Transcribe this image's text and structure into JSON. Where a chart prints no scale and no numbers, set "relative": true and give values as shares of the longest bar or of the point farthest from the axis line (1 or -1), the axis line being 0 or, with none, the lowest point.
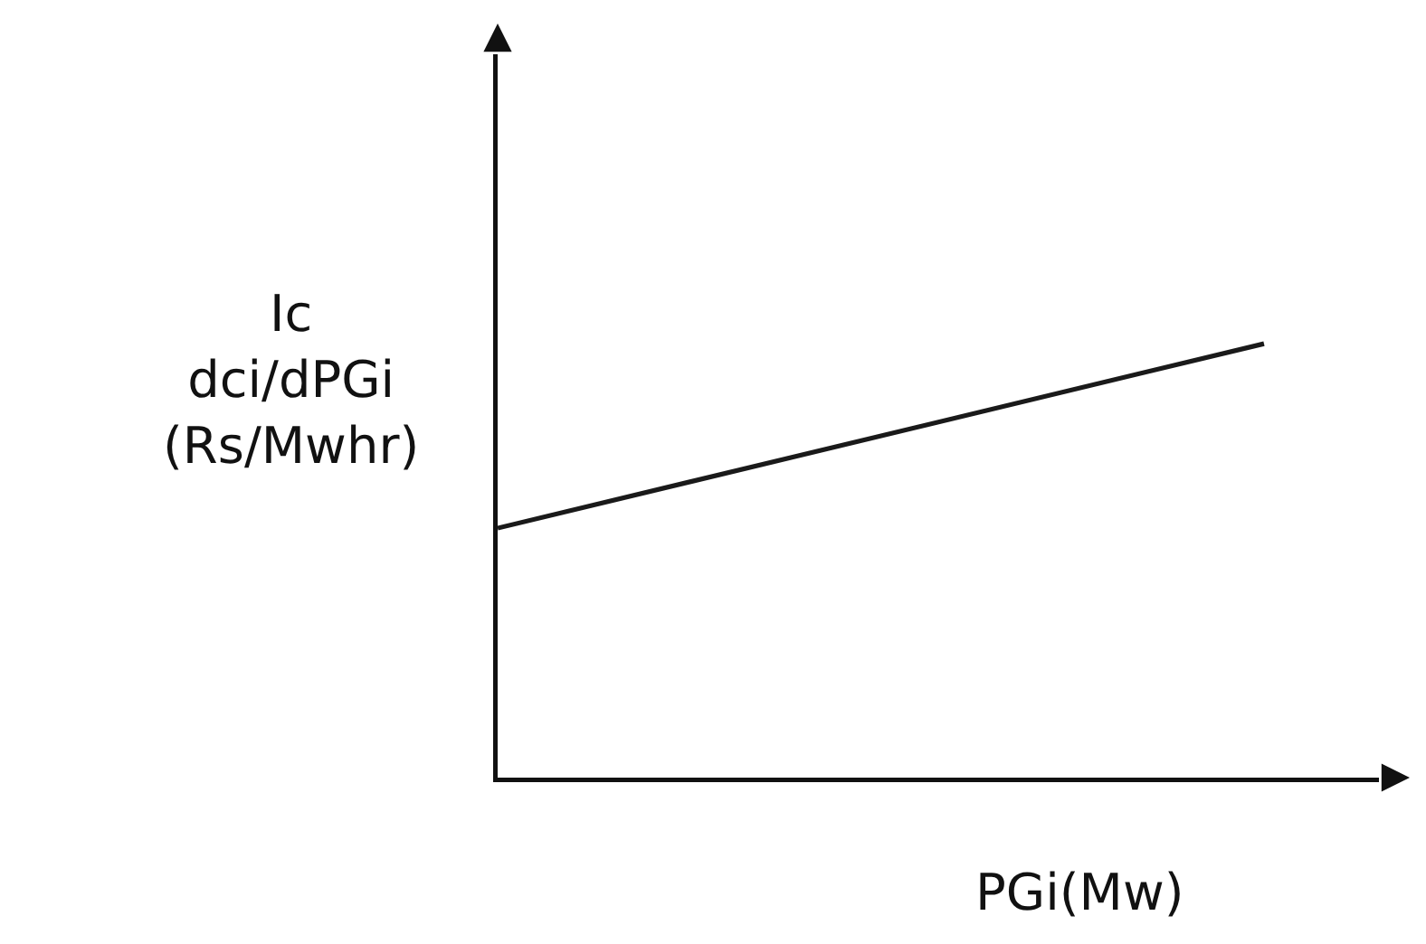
{
  "chart_data": {
    "type": "line",
    "relative": true,
    "categories": [
      null,
      null
    ],
    "series": [
      {
        "color": "#1a1a1a",
        "values": [
          0.575,
          1
        ]
      }
    ],
    "xlabel": "PGi(Mw)",
    "ylabel": "Ic\ndci/dPGi\n(Rs/Mwhr)",
    "line_style": "solid"
  }
}
